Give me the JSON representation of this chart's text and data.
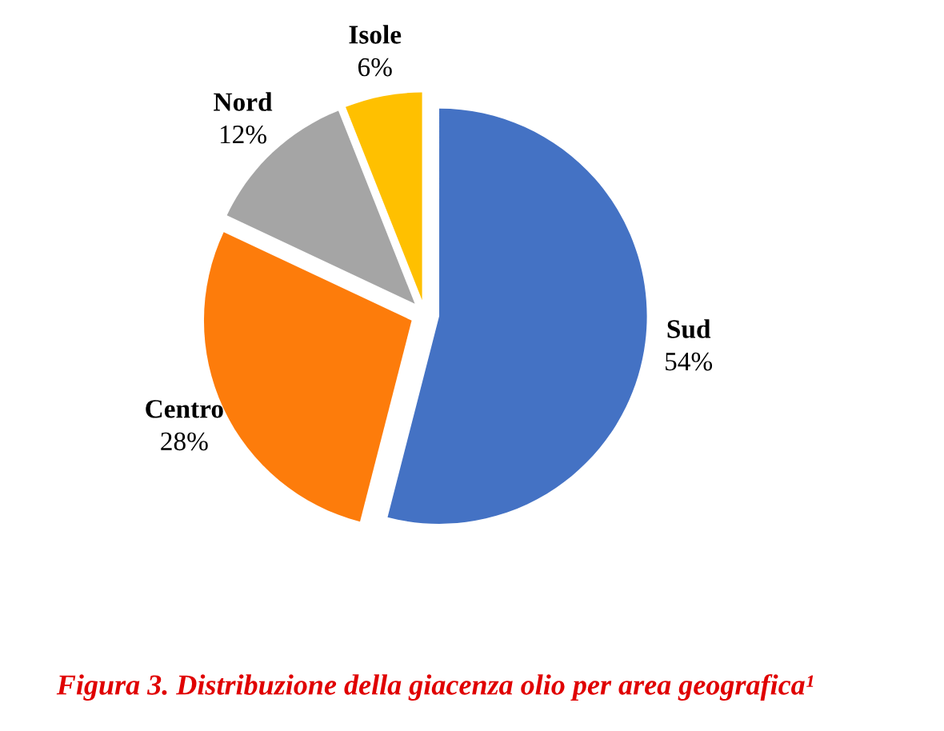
{
  "chart_data": {
    "type": "pie",
    "title": "Figura 3. Distribuzione della giacenza olio per area geografica¹",
    "categories": [
      "Sud",
      "Centro",
      "Nord",
      "Isole"
    ],
    "values": [
      54,
      28,
      12,
      6
    ],
    "value_labels": [
      "54%",
      "28%",
      "12%",
      "6%"
    ],
    "colors": [
      "#4472c4",
      "#fd7c0b",
      "#a5a5a5",
      "#ffc000"
    ]
  }
}
